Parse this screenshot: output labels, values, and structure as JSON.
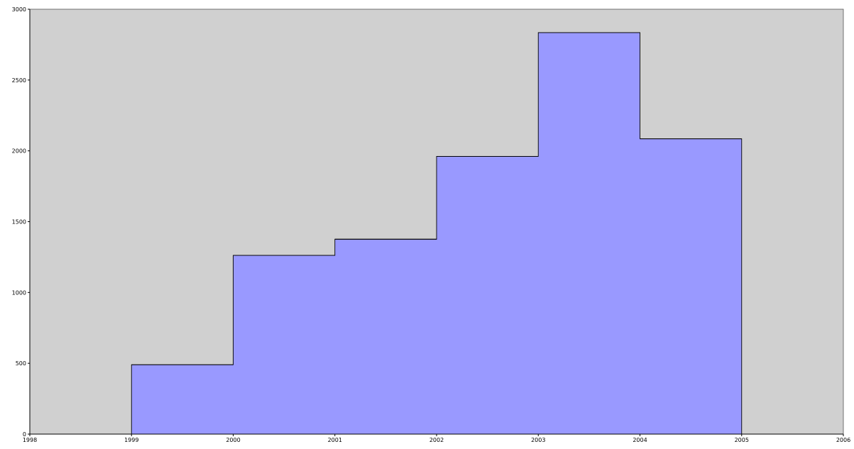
{
  "chart_data": {
    "type": "area",
    "step": "post",
    "x": [
      1999,
      2000,
      2001,
      2002,
      2003,
      2004,
      2005
    ],
    "values": [
      490,
      1262,
      1376,
      1961,
      2835,
      2085,
      0
    ],
    "xlim": [
      1998,
      2006
    ],
    "ylim": [
      0,
      3000
    ],
    "xticks": [
      1998,
      1999,
      2000,
      2001,
      2002,
      2003,
      2004,
      2005,
      2006
    ],
    "yticks": [
      0,
      500,
      1000,
      1500,
      2000,
      2500,
      3000
    ],
    "grid": false,
    "legend": "none",
    "colors": {
      "plot_background": "#d0d0d0",
      "fill": "#9999ff",
      "stroke": "#000000"
    }
  }
}
